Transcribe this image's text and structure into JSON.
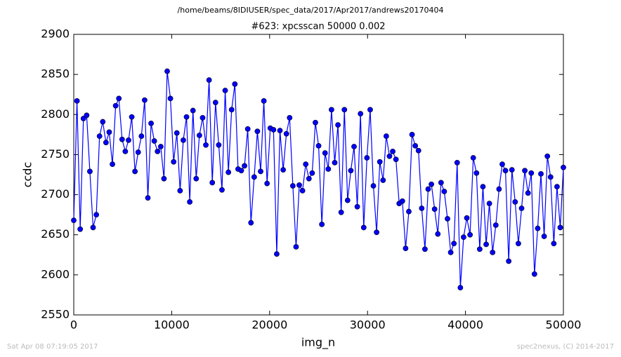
{
  "chart_data": {
    "type": "line",
    "suptitle": "/home/beams/8IDIUSER/spec_data/2017/Apr2017/andrews20170404",
    "title": "#623: xpcsscan 50000 0.002",
    "xlabel": "img_n",
    "ylabel": "ccdc",
    "footer_left": "Sat Apr 08 07:19:05 2017",
    "footer_right": "spec2nexus, (C) 2014-2017",
    "xlim": [
      0,
      50000
    ],
    "xticks": [
      0,
      10000,
      20000,
      30000,
      40000,
      50000
    ],
    "ylim": [
      2550,
      2900
    ],
    "yticks": [
      2550,
      2600,
      2650,
      2700,
      2750,
      2800,
      2850,
      2900
    ],
    "color": "#0000ff",
    "x": [
      0,
      329,
      658,
      987,
      1316,
      1645,
      1974,
      2303,
      2632,
      2961,
      3290,
      3619,
      3948,
      4277,
      4606,
      4935,
      5264,
      5593,
      5922,
      6251,
      6580,
      6909,
      7238,
      7567,
      7896,
      8225,
      8554,
      8883,
      9212,
      9541,
      9870,
      10199,
      10528,
      10857,
      11186,
      11515,
      11844,
      12173,
      12502,
      12831,
      13160,
      13489,
      13818,
      14147,
      14476,
      14805,
      15134,
      15463,
      15792,
      16121,
      16450,
      16779,
      17108,
      17437,
      17766,
      18095,
      18424,
      18753,
      19082,
      19411,
      19740,
      20069,
      20398,
      20727,
      21056,
      21385,
      21714,
      22043,
      22372,
      22701,
      23030,
      23359,
      23688,
      24017,
      24346,
      24675,
      25004,
      25333,
      25662,
      25991,
      26320,
      26649,
      26978,
      27307,
      27636,
      27965,
      28294,
      28623,
      28952,
      29281,
      29610,
      29939,
      30268,
      30597,
      30926,
      31255,
      31584,
      31913,
      32242,
      32571,
      32900,
      33229,
      33558,
      33887,
      34216,
      34545,
      34874,
      35203,
      35532,
      35861,
      36190,
      36519,
      36848,
      37177,
      37506,
      37835,
      38164,
      38493,
      38822,
      39151,
      39480,
      39809,
      40138,
      40467,
      40796,
      41125,
      41454,
      41783,
      42112,
      42441,
      42770,
      43099,
      43428,
      43757,
      44086,
      44415,
      44744,
      45073,
      45402,
      45731,
      46060,
      46389,
      46718,
      47047,
      47376,
      47705,
      48034,
      48363,
      48692,
      49021,
      49350,
      49679,
      50000
    ],
    "values": [
      2668,
      2817,
      2657,
      2795,
      2799,
      2729,
      2659,
      2675,
      2773,
      2791,
      2765,
      2778,
      2738,
      2811,
      2820,
      2769,
      2754,
      2768,
      2797,
      2729,
      2753,
      2773,
      2818,
      2696,
      2789,
      2767,
      2754,
      2760,
      2720,
      2854,
      2820,
      2741,
      2777,
      2705,
      2768,
      2797,
      2691,
      2805,
      2720,
      2774,
      2796,
      2762,
      2843,
      2715,
      2815,
      2762,
      2706,
      2830,
      2728,
      2806,
      2838,
      2732,
      2730,
      2736,
      2782,
      2665,
      2722,
      2779,
      2729,
      2817,
      2714,
      2783,
      2781,
      2626,
      2780,
      2731,
      2776,
      2796,
      2711,
      2635,
      2712,
      2705,
      2738,
      2720,
      2727,
      2790,
      2761,
      2663,
      2752,
      2732,
      2806,
      2740,
      2787,
      2678,
      2806,
      2693,
      2730,
      2760,
      2685,
      2801,
      2659,
      2746,
      2806,
      2711,
      2653,
      2741,
      2718,
      2773,
      2748,
      2754,
      2744,
      2689,
      2692,
      2633,
      2679,
      2775,
      2761,
      2755,
      2683,
      2632,
      2707,
      2713,
      2682,
      2651,
      2715,
      2704,
      2670,
      2628,
      2639,
      2740,
      2584,
      2647,
      2671,
      2650,
      2746,
      2727,
      2632,
      2710,
      2638,
      2689,
      2628,
      2662,
      2707,
      2738,
      2730,
      2617,
      2731,
      2691,
      2639,
      2683,
      2730,
      2702,
      2727,
      2601,
      2658,
      2726,
      2648,
      2748,
      2722,
      2639,
      2710,
      2659,
      2734
    ]
  }
}
